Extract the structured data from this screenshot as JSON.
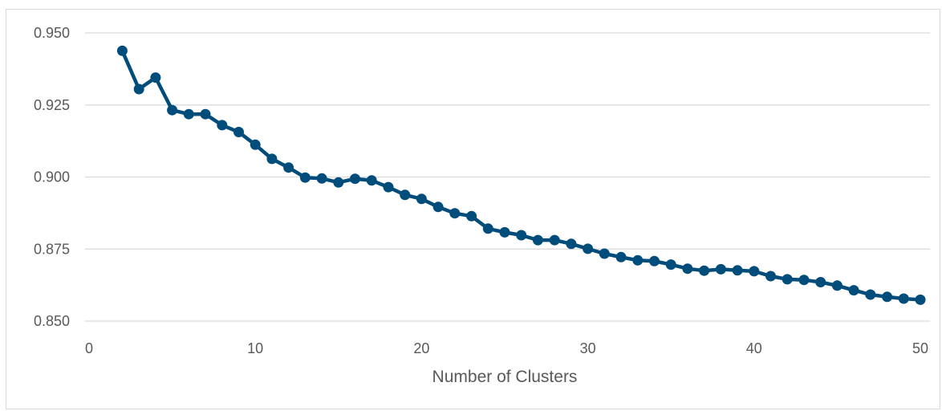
{
  "chart_data": {
    "type": "line",
    "title": "",
    "xlabel": "Number of Clusters",
    "ylabel": "",
    "xlim": [
      0,
      50
    ],
    "ylim": [
      0.85,
      0.95
    ],
    "x_ticks": [
      "0",
      "10",
      "20",
      "30",
      "40",
      "50"
    ],
    "y_ticks": [
      "0.850",
      "0.875",
      "0.900",
      "0.925",
      "0.950"
    ],
    "grid": "horizontal",
    "legend": "none",
    "series": [
      {
        "color": "#004c7a",
        "x": [
          2,
          3,
          4,
          5,
          6,
          7,
          8,
          9,
          10,
          11,
          12,
          13,
          14,
          15,
          16,
          17,
          18,
          19,
          20,
          21,
          22,
          23,
          24,
          25,
          26,
          27,
          28,
          29,
          30,
          31,
          32,
          33,
          34,
          35,
          36,
          37,
          38,
          39,
          40,
          41,
          42,
          43,
          44,
          45,
          46,
          47,
          48,
          49,
          50
        ],
        "values": [
          0.9438,
          0.9305,
          0.9345,
          0.9232,
          0.9218,
          0.9218,
          0.918,
          0.9156,
          0.9112,
          0.9063,
          0.9033,
          0.8998,
          0.8995,
          0.8981,
          0.8994,
          0.8988,
          0.8965,
          0.8938,
          0.8924,
          0.8896,
          0.8874,
          0.8864,
          0.8821,
          0.8808,
          0.8798,
          0.8781,
          0.8781,
          0.8768,
          0.8751,
          0.8734,
          0.8722,
          0.8711,
          0.8708,
          0.8696,
          0.8682,
          0.8675,
          0.868,
          0.8676,
          0.8673,
          0.8656,
          0.8645,
          0.8643,
          0.8635,
          0.8623,
          0.8607,
          0.8592,
          0.8584,
          0.8578,
          0.8574
        ]
      }
    ]
  }
}
